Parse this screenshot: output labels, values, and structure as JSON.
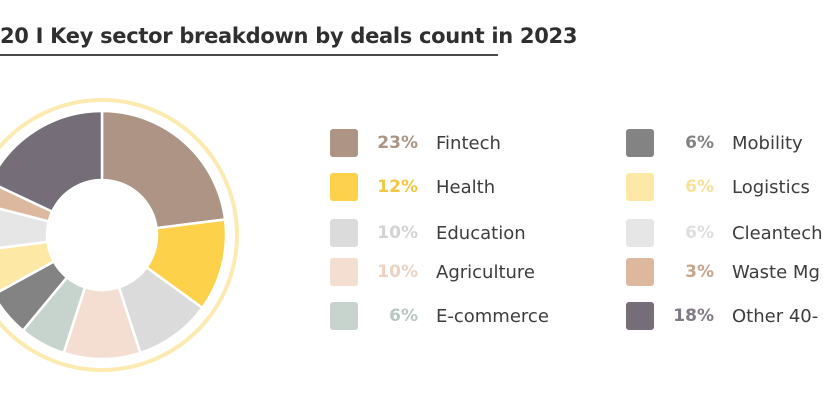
{
  "chart_data": {
    "type": "pie",
    "title": "20 I Key sector breakdown by deals count in 2023",
    "unit": "%",
    "slices": [
      {
        "label": "Fintech",
        "value": 23,
        "value_label": "23%",
        "color": "#ad9484"
      },
      {
        "label": "Health",
        "value": 12,
        "value_label": "12%",
        "color": "#fdd14a"
      },
      {
        "label": "Education",
        "value": 10,
        "value_label": "10%",
        "color": "#dbdbdb"
      },
      {
        "label": "Agriculture",
        "value": 10,
        "value_label": "10%",
        "color": "#f4ded1"
      },
      {
        "label": "E-commerce",
        "value": 6,
        "value_label": "6%",
        "color": "#c7d4cd"
      },
      {
        "label": "Mobility",
        "value": 6,
        "value_label": "6%",
        "color": "#838383"
      },
      {
        "label": "Logistics",
        "value": 6,
        "value_label": "6%",
        "color": "#fde8a6"
      },
      {
        "label": "Cleantech",
        "value": 6,
        "value_label": "6%",
        "color": "#e6e6e6"
      },
      {
        "label": "Waste Mg",
        "value": 3,
        "value_label": "3%",
        "color": "#dcb89e"
      },
      {
        "label": "Other 40-",
        "value": 18,
        "value_label": "18%",
        "color": "#756e78"
      }
    ],
    "colors": {
      "ring": "#fdeab0",
      "pct_text": [
        "#ad9484",
        "#f6c744",
        "#d3d3d3",
        "#ecd2c3",
        "#b9c7c0",
        "#838383",
        "#fbe098",
        "#dedede",
        "#c8a58a",
        "#807a84"
      ]
    }
  }
}
